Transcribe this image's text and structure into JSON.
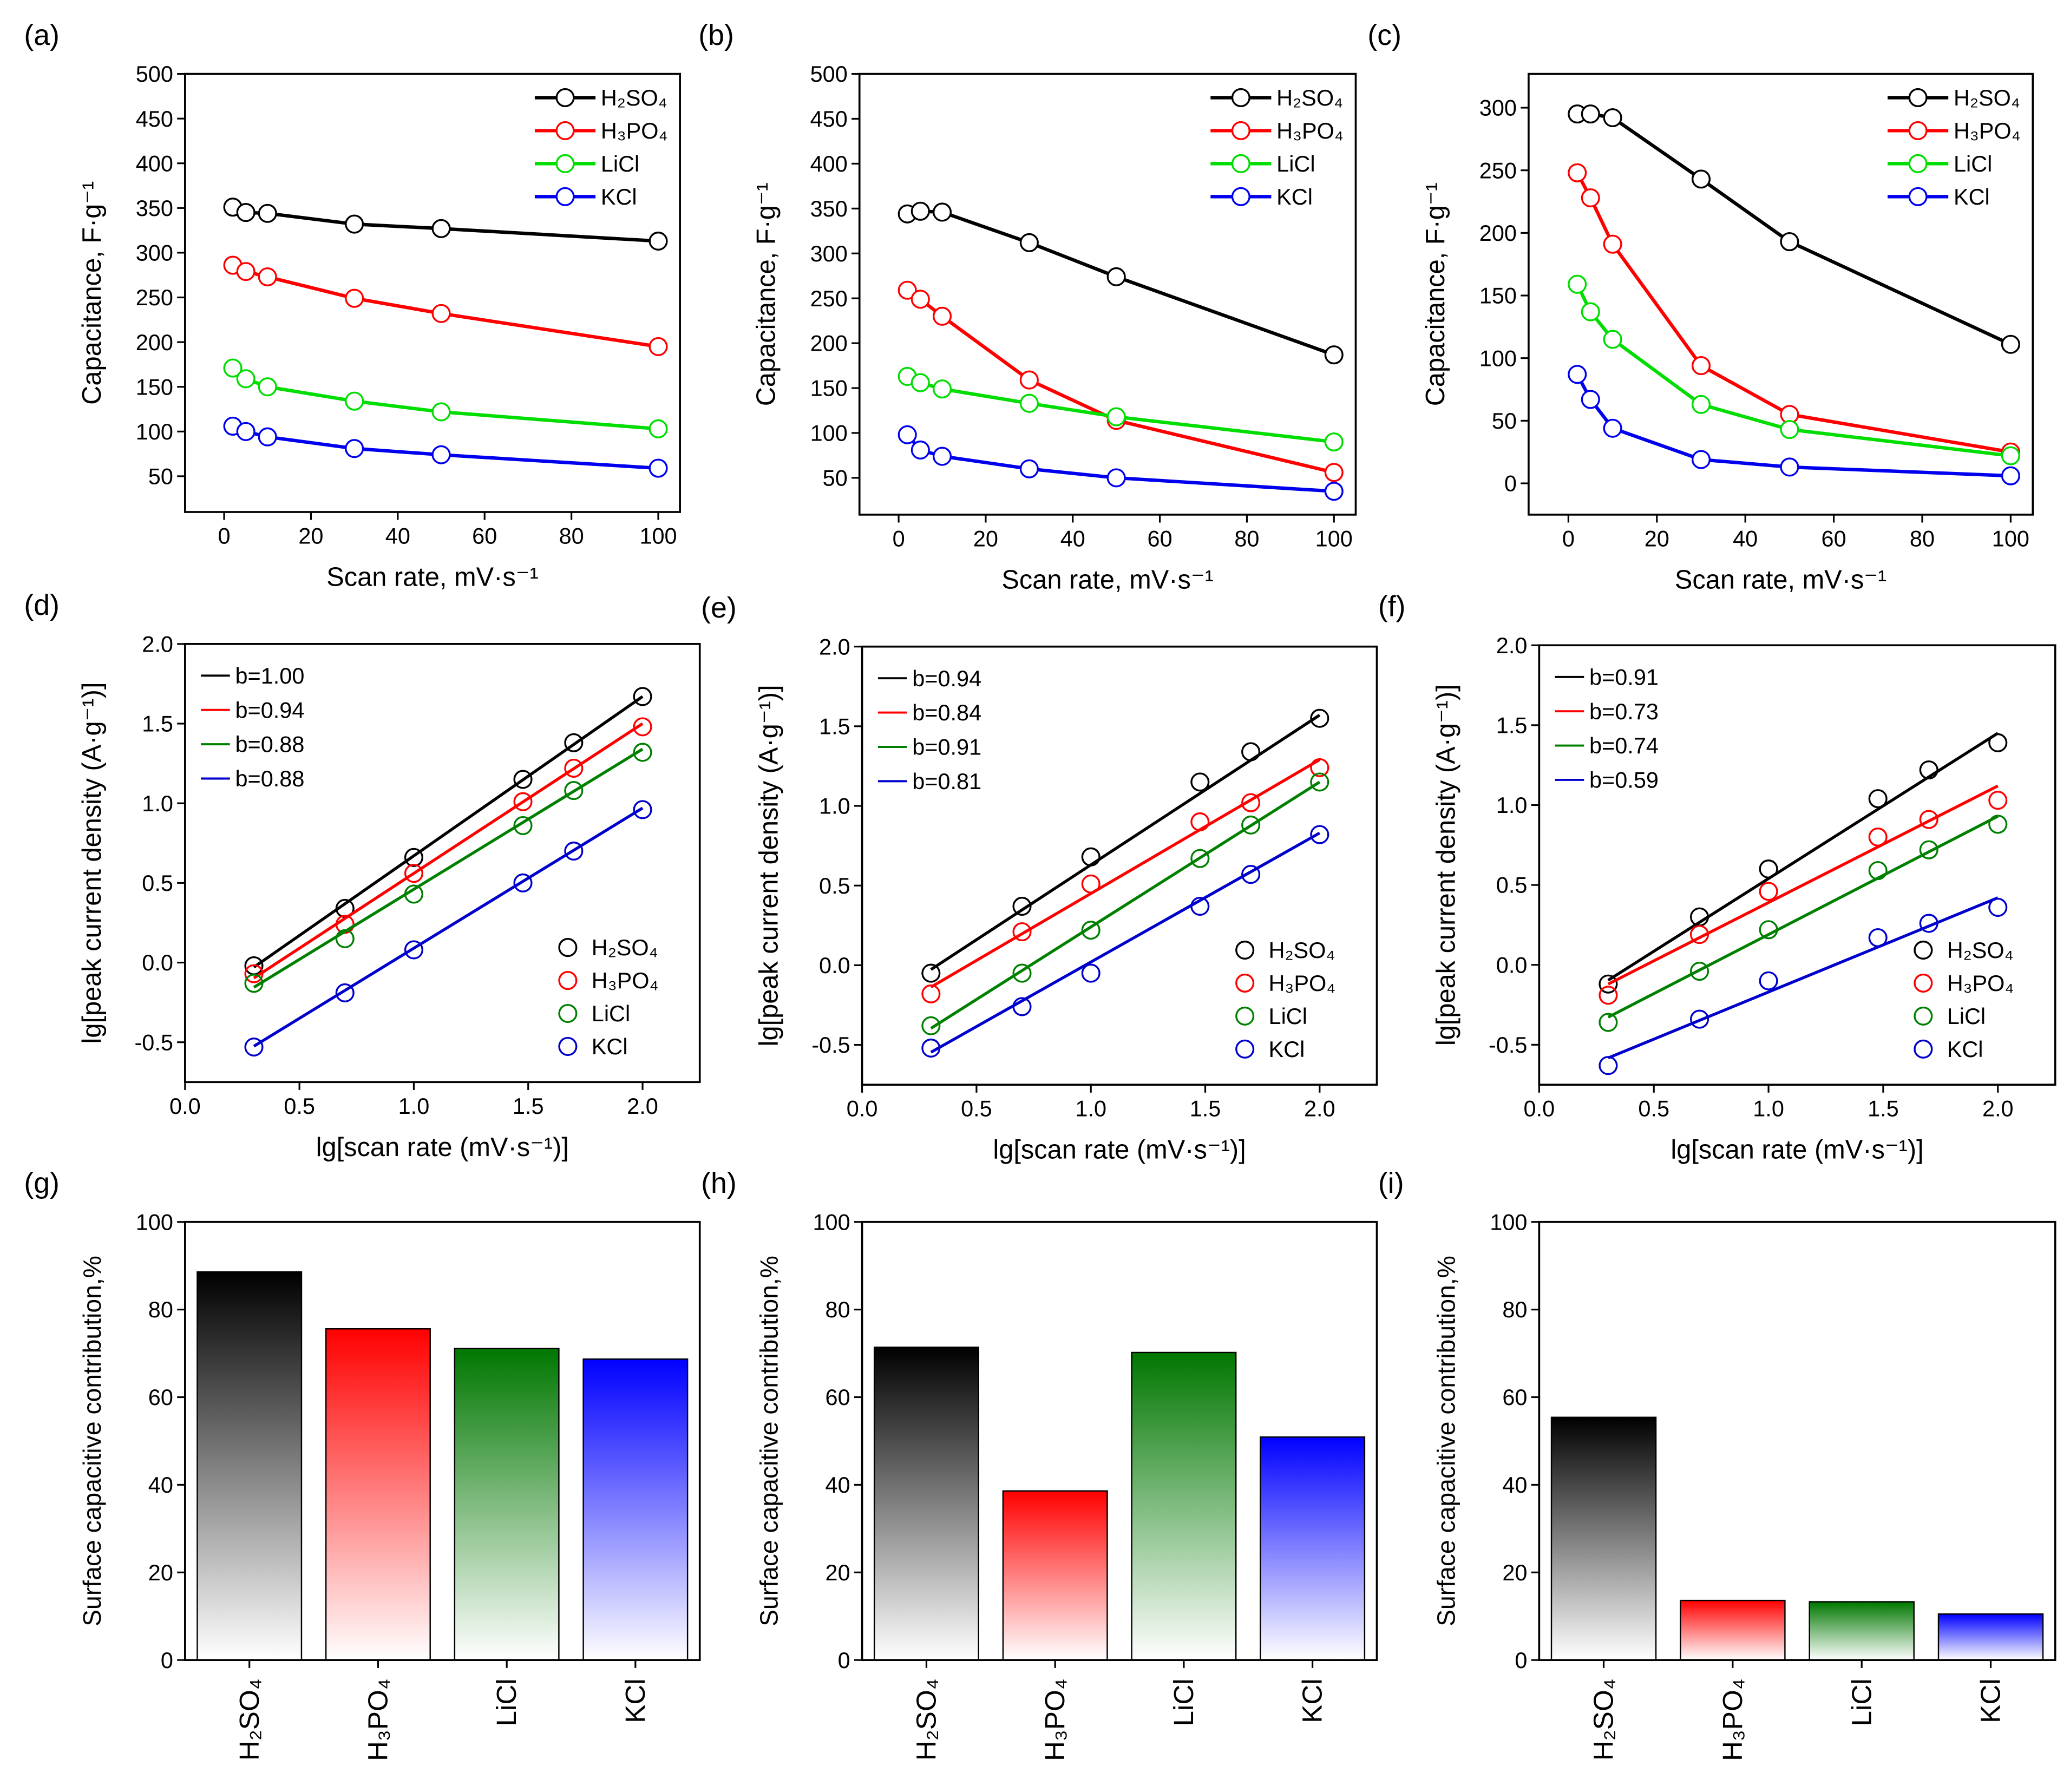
{
  "chart_data": [
    {
      "type": "line",
      "label": "(a)",
      "xlabel": "Scan rate, mV·s⁻¹",
      "ylabel": "Capacitance, F·g⁻¹",
      "legend": "upper right",
      "x": [
        2,
        5,
        10,
        30,
        50,
        100
      ],
      "xlim": [
        -9,
        105
      ],
      "xticks": [
        0,
        20,
        40,
        60,
        80,
        100
      ],
      "ylim": [
        10,
        500
      ],
      "yticks": [
        50,
        100,
        150,
        200,
        250,
        300,
        350,
        400,
        450,
        500
      ],
      "series": [
        {
          "name": "H₂SO₄",
          "color": "#000000",
          "values": [
            351,
            345,
            344,
            332,
            327,
            313
          ]
        },
        {
          "name": "H₃PO₄",
          "color": "#ff0000",
          "values": [
            286,
            279,
            273,
            249,
            232,
            195
          ]
        },
        {
          "name": "LiCl",
          "color": "#00dd00",
          "values": [
            171,
            159,
            150,
            134,
            122,
            103
          ]
        },
        {
          "name": "KCl",
          "color": "#0000ee",
          "values": [
            106,
            100,
            94,
            81,
            74,
            59
          ]
        }
      ]
    },
    {
      "type": "line",
      "label": "(b)",
      "xlabel": "Scan rate, mV·s⁻¹",
      "ylabel": "Capacitance, F·g⁻¹",
      "legend": "upper right",
      "x": [
        2,
        5,
        10,
        30,
        50,
        100
      ],
      "xlim": [
        -9,
        105
      ],
      "xticks": [
        0,
        20,
        40,
        60,
        80,
        100
      ],
      "ylim": [
        9,
        500
      ],
      "yticks": [
        50,
        100,
        150,
        200,
        250,
        300,
        350,
        400,
        450,
        500
      ],
      "series": [
        {
          "name": "H₂SO₄",
          "color": "#000000",
          "values": [
            344,
            347,
            346,
            312,
            274,
            187
          ]
        },
        {
          "name": "H₃PO₄",
          "color": "#ff0000",
          "values": [
            259,
            249,
            230,
            159,
            114,
            56
          ]
        },
        {
          "name": "LiCl",
          "color": "#00dd00",
          "values": [
            163,
            156,
            149,
            133,
            118,
            90
          ]
        },
        {
          "name": "KCl",
          "color": "#0000ee",
          "values": [
            98,
            81,
            74,
            60,
            50,
            35
          ]
        }
      ]
    },
    {
      "type": "line",
      "label": "(c)",
      "xlabel": "Scan rate, mV·s⁻¹",
      "ylabel": "Capacitance, F·g⁻¹",
      "legend": "upper right",
      "x": [
        2,
        5,
        10,
        30,
        50,
        100
      ],
      "xlim": [
        -9,
        105
      ],
      "xticks": [
        0,
        20,
        40,
        60,
        80,
        100
      ],
      "ylim": [
        -25,
        327
      ],
      "yticks": [
        0,
        50,
        100,
        150,
        200,
        250,
        300
      ],
      "series": [
        {
          "name": "H₂SO₄",
          "color": "#000000",
          "values": [
            295,
            295,
            292,
            243,
            193,
            111
          ]
        },
        {
          "name": "H₃PO₄",
          "color": "#ff0000",
          "values": [
            248,
            228,
            191,
            94,
            55,
            25
          ]
        },
        {
          "name": "LiCl",
          "color": "#00dd00",
          "values": [
            159,
            137,
            115,
            63,
            43,
            22
          ]
        },
        {
          "name": "KCl",
          "color": "#0000ee",
          "values": [
            87,
            67,
            44,
            19,
            13,
            6
          ]
        }
      ]
    },
    {
      "type": "scatter",
      "label": "(d)",
      "xlabel": "lg[scan rate (mV·s⁻¹)]",
      "ylabel": "lg[peak current density (A·g⁻¹)]",
      "legend": "lower right",
      "fit_legend": "upper left",
      "x": [
        0.301,
        0.699,
        1,
        1.477,
        1.699,
        2
      ],
      "xlim": [
        0,
        2.25
      ],
      "xticks": [
        {
          "value": 0,
          "label": "0.0"
        },
        0.5,
        {
          "value": 1,
          "label": "1.0"
        },
        1.5,
        {
          "value": 2,
          "label": "2.0"
        }
      ],
      "ylim": [
        -0.75,
        2
      ],
      "yticks": [
        -0.5,
        {
          "value": 0,
          "label": "0.0"
        },
        0.5,
        {
          "value": 1,
          "label": "1.0"
        },
        1.5,
        {
          "value": 2,
          "label": "2.0"
        }
      ],
      "series": [
        {
          "name": "H₂SO₄",
          "color": "#000000",
          "values": [
            -0.02,
            0.34,
            0.66,
            1.15,
            1.38,
            1.67
          ],
          "fit": {
            "name": "b=1.00",
            "slope": 1.0,
            "intercept": -0.33
          }
        },
        {
          "name": "H₃PO₄",
          "color": "#ff0000",
          "values": [
            -0.07,
            0.24,
            0.56,
            1.01,
            1.22,
            1.48
          ],
          "fit": {
            "name": "b=0.94",
            "slope": 0.94,
            "intercept": -0.38
          }
        },
        {
          "name": "LiCl",
          "color": "#008000",
          "values": [
            -0.13,
            0.15,
            0.43,
            0.86,
            1.08,
            1.32
          ],
          "fit": {
            "name": "b=0.88",
            "slope": 0.88,
            "intercept": -0.42
          }
        },
        {
          "name": "KCl",
          "color": "#0000cc",
          "values": [
            -0.53,
            -0.19,
            0.08,
            0.5,
            0.7,
            0.96
          ],
          "fit": {
            "name": "b=0.88",
            "slope": 0.88,
            "intercept": -0.79
          }
        }
      ]
    },
    {
      "type": "scatter",
      "label": "(e)",
      "xlabel": "lg[scan rate (mV·s⁻¹)]",
      "ylabel": "lg[peak current density (A·g⁻¹)]",
      "legend": "lower right",
      "fit_legend": "upper left",
      "x": [
        0.301,
        0.699,
        1,
        1.477,
        1.699,
        2
      ],
      "xlim": [
        0,
        2.25
      ],
      "xticks": [
        {
          "value": 0,
          "label": "0.0"
        },
        0.5,
        {
          "value": 1,
          "label": "1.0"
        },
        1.5,
        {
          "value": 2,
          "label": "2.0"
        }
      ],
      "ylim": [
        -0.75,
        2
      ],
      "yticks": [
        -0.5,
        {
          "value": 0,
          "label": "0.0"
        },
        0.5,
        {
          "value": 1,
          "label": "1.0"
        },
        1.5,
        {
          "value": 2,
          "label": "2.0"
        }
      ],
      "series": [
        {
          "name": "H₂SO₄",
          "color": "#000000",
          "values": [
            -0.05,
            0.37,
            0.68,
            1.15,
            1.34,
            1.55
          ],
          "fit": {
            "name": "b=0.94",
            "slope": 0.94,
            "intercept": -0.31
          }
        },
        {
          "name": "H₃PO₄",
          "color": "#ff0000",
          "values": [
            -0.18,
            0.21,
            0.51,
            0.9,
            1.02,
            1.24
          ],
          "fit": {
            "name": "b=0.84",
            "slope": 0.84,
            "intercept": -0.39
          }
        },
        {
          "name": "LiCl",
          "color": "#008000",
          "values": [
            -0.38,
            -0.05,
            0.22,
            0.67,
            0.88,
            1.15
          ],
          "fit": {
            "name": "b=0.91",
            "slope": 0.91,
            "intercept": -0.67
          }
        },
        {
          "name": "KCl",
          "color": "#0000cc",
          "values": [
            -0.52,
            -0.26,
            -0.05,
            0.37,
            0.57,
            0.82
          ],
          "fit": {
            "name": "b=0.81",
            "slope": 0.81,
            "intercept": -0.79
          }
        }
      ]
    },
    {
      "type": "scatter",
      "label": "(f)",
      "xlabel": "lg[scan rate (mV·s⁻¹)]",
      "ylabel": "lg[peak current density (A·g⁻¹)]",
      "legend": "lower right",
      "fit_legend": "upper left",
      "x": [
        0.301,
        0.699,
        1,
        1.477,
        1.699,
        2
      ],
      "xlim": [
        0,
        2.25
      ],
      "xticks": [
        {
          "value": 0,
          "label": "0.0"
        },
        0.5,
        {
          "value": 1,
          "label": "1.0"
        },
        1.5,
        {
          "value": 2,
          "label": "2.0"
        }
      ],
      "ylim": [
        -0.75,
        2
      ],
      "yticks": [
        -0.5,
        {
          "value": 0,
          "label": "0.0"
        },
        0.5,
        {
          "value": 1,
          "label": "1.0"
        },
        1.5,
        {
          "value": 2,
          "label": "2.0"
        }
      ],
      "series": [
        {
          "name": "H₂SO₄",
          "color": "#000000",
          "values": [
            -0.12,
            0.3,
            0.6,
            1.04,
            1.22,
            1.39
          ],
          "fit": {
            "name": "b=0.91",
            "slope": 0.91,
            "intercept": -0.37
          }
        },
        {
          "name": "H₃PO₄",
          "color": "#ff0000",
          "values": [
            -0.19,
            0.19,
            0.46,
            0.8,
            0.91,
            1.03
          ],
          "fit": {
            "name": "b=0.73",
            "slope": 0.73,
            "intercept": -0.34
          }
        },
        {
          "name": "LiCl",
          "color": "#008000",
          "values": [
            -0.36,
            -0.04,
            0.22,
            0.59,
            0.72,
            0.88
          ],
          "fit": {
            "name": "b=0.74",
            "slope": 0.74,
            "intercept": -0.55
          }
        },
        {
          "name": "KCl",
          "color": "#0000cc",
          "values": [
            -0.63,
            -0.34,
            -0.1,
            0.17,
            0.26,
            0.36
          ],
          "fit": {
            "name": "b=0.59",
            "slope": 0.59,
            "intercept": -0.76
          }
        }
      ]
    },
    {
      "type": "bar",
      "label": "(g)",
      "ylabel": "Surface capacitive contribution,%",
      "categories": [
        "H₂SO₄",
        "H₃PO₄",
        "LiCl",
        "KCl"
      ],
      "values": [
        88.6,
        75.6,
        71.1,
        68.7
      ],
      "colors": [
        "#000000",
        "#ff0000",
        "#007700",
        "#0000ff"
      ],
      "ylim": [
        0,
        100
      ],
      "yticks": [
        0,
        20,
        40,
        60,
        80,
        100
      ]
    },
    {
      "type": "bar",
      "label": "(h)",
      "ylabel": "Surface capacitive contribution,%",
      "categories": [
        "H₂SO₄",
        "H₃PO₄",
        "LiCl",
        "KCl"
      ],
      "values": [
        71.4,
        38.6,
        70.2,
        50.9
      ],
      "colors": [
        "#000000",
        "#ff0000",
        "#007700",
        "#0000ff"
      ],
      "ylim": [
        0,
        100
      ],
      "yticks": [
        0,
        20,
        40,
        60,
        80,
        100
      ]
    },
    {
      "type": "bar",
      "label": "(i)",
      "ylabel": "Surface capacitive contribution,%",
      "categories": [
        "H₂SO₄",
        "H₃PO₄",
        "LiCl",
        "KCl"
      ],
      "values": [
        55.4,
        13.6,
        13.3,
        10.5
      ],
      "colors": [
        "#000000",
        "#ff0000",
        "#007700",
        "#0000ff"
      ],
      "ylim": [
        0,
        100
      ],
      "yticks": [
        0,
        20,
        40,
        60,
        80,
        100
      ]
    }
  ]
}
